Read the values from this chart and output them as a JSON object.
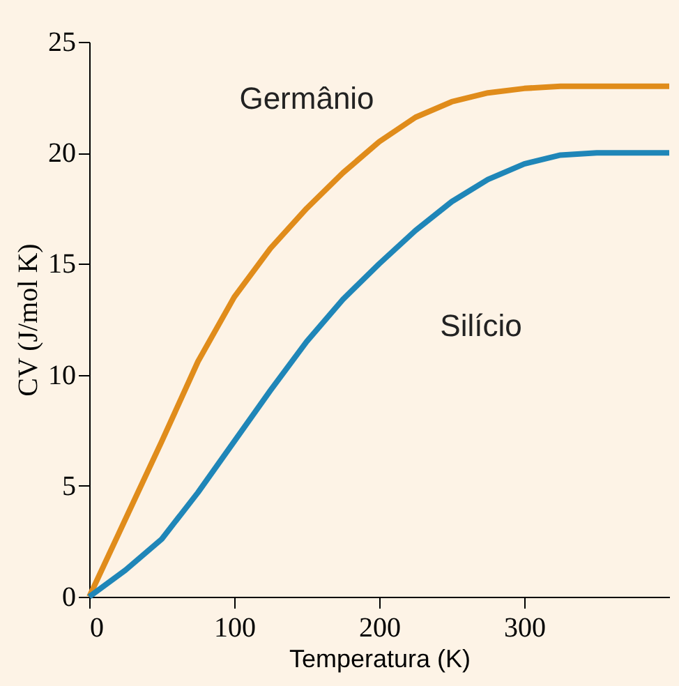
{
  "chart_data": {
    "type": "line",
    "xlabel": "Temperatura (K)",
    "ylabel": "CV (J/mol K)",
    "xlim": [
      0,
      400
    ],
    "xticks": [
      0,
      100,
      200,
      300
    ],
    "ylim": [
      0,
      25
    ],
    "yticks": [
      0,
      5,
      10,
      15,
      20,
      25
    ],
    "grid": false,
    "line_style": "solid",
    "marker": "none",
    "x": [
      0,
      25,
      50,
      75,
      100,
      125,
      150,
      175,
      200,
      225,
      250,
      275,
      300,
      325,
      350,
      375,
      400
    ],
    "series": [
      {
        "name": "Germânio",
        "color": "#e08c1b",
        "values": [
          0,
          3.5,
          7,
          10.6,
          13.5,
          15.7,
          17.5,
          19.1,
          20.5,
          21.6,
          22.3,
          22.7,
          22.9,
          23,
          23,
          23,
          23
        ]
      },
      {
        "name": "Silício",
        "color": "#1f86b8",
        "values": [
          0,
          1.2,
          2.6,
          4.7,
          7,
          9.3,
          11.5,
          13.4,
          15,
          16.5,
          17.8,
          18.8,
          19.5,
          19.9,
          20,
          20,
          20
        ]
      }
    ],
    "legend": false
  }
}
